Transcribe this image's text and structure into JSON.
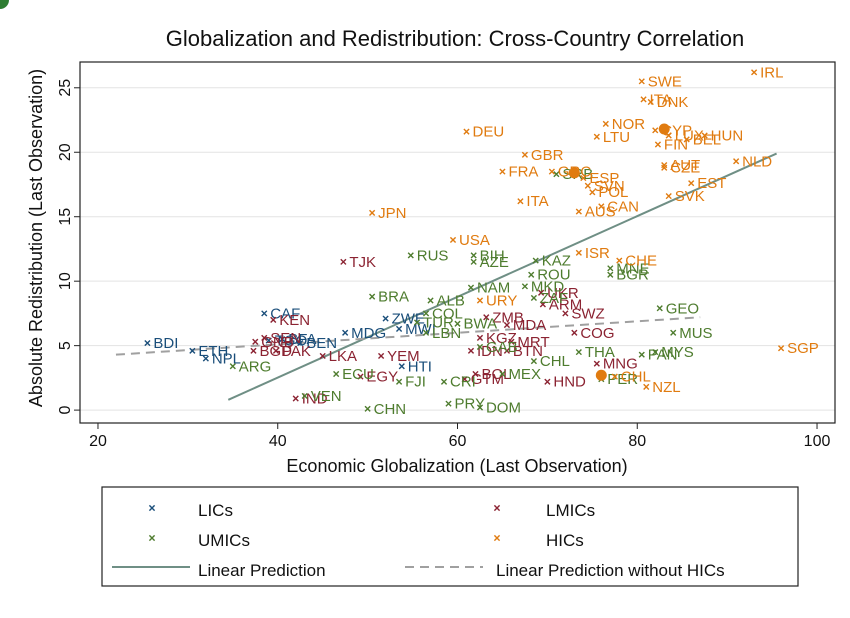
{
  "chart_data": {
    "type": "scatter",
    "title": "Globalization and Redistribution: Cross-Country Correlation",
    "xlabel": "Economic Globalization (Last Observation)",
    "ylabel": "Absolute Redistribution (Last Observation)",
    "xlim": [
      18,
      102
    ],
    "ylim": [
      -1,
      27
    ],
    "xticks": [
      20,
      40,
      60,
      80,
      100
    ],
    "yticks": [
      0,
      5,
      10,
      15,
      20,
      25
    ],
    "grid": true,
    "legend_position": "bottom",
    "colors": {
      "LICs": "#1a4e7a",
      "LMICs": "#8b2332",
      "UMICs": "#4e7c2e",
      "HICs": "#e07b10",
      "fit_all": "#6f8f85",
      "fit_nohic": "#a0a0a0"
    },
    "series": [
      {
        "name": "LICs",
        "marker": "x",
        "points": [
          {
            "label": "BDI",
            "x": 25.5,
            "y": 5.2
          },
          {
            "label": "ETH",
            "x": 30.5,
            "y": 4.6
          },
          {
            "label": "NPL",
            "x": 32.0,
            "y": 4.0
          },
          {
            "label": "CAF",
            "x": 38.5,
            "y": 7.5
          },
          {
            "label": "TGO",
            "x": 39.0,
            "y": 5.4
          },
          {
            "label": "BFA",
            "x": 40.5,
            "y": 5.5
          },
          {
            "label": "BEN",
            "x": 42.5,
            "y": 5.2
          },
          {
            "label": "MDG",
            "x": 47.5,
            "y": 6.0
          },
          {
            "label": "ZWE",
            "x": 52.0,
            "y": 7.1
          },
          {
            "label": "MWI",
            "x": 53.5,
            "y": 6.3
          },
          {
            "label": "HTI",
            "x": 53.8,
            "y": 3.4
          }
        ]
      },
      {
        "name": "LMICs",
        "marker": "x",
        "points": [
          {
            "label": "TJK",
            "x": 47.3,
            "y": 11.5
          },
          {
            "label": "KEN",
            "x": 39.5,
            "y": 7.0
          },
          {
            "label": "SEN",
            "x": 38.5,
            "y": 5.6
          },
          {
            "label": "GNB",
            "x": 37.5,
            "y": 5.3
          },
          {
            "label": "BGD",
            "x": 37.3,
            "y": 4.6
          },
          {
            "label": "PAK",
            "x": 39.8,
            "y": 4.6
          },
          {
            "label": "IND",
            "x": 42.0,
            "y": 0.9
          },
          {
            "label": "LKA",
            "x": 45.0,
            "y": 4.2
          },
          {
            "label": "EGY",
            "x": 49.2,
            "y": 2.6
          },
          {
            "label": "YEM",
            "x": 51.5,
            "y": 4.2
          },
          {
            "label": "KGZ",
            "x": 62.5,
            "y": 5.6
          },
          {
            "label": "ZMB",
            "x": 63.2,
            "y": 7.2
          },
          {
            "label": "MDA",
            "x": 65.5,
            "y": 6.6
          },
          {
            "label": "ARM",
            "x": 69.5,
            "y": 8.2
          },
          {
            "label": "UKR",
            "x": 69.3,
            "y": 9.1
          },
          {
            "label": "SWZ",
            "x": 72.0,
            "y": 7.5
          },
          {
            "label": "MRT",
            "x": 66.0,
            "y": 5.3
          },
          {
            "label": "IDN",
            "x": 61.5,
            "y": 4.6
          },
          {
            "label": "BTN",
            "x": 65.5,
            "y": 4.6
          },
          {
            "label": "COG",
            "x": 73.0,
            "y": 6.0
          },
          {
            "label": "MNG",
            "x": 75.5,
            "y": 3.6
          },
          {
            "label": "HND",
            "x": 70.0,
            "y": 2.2
          },
          {
            "label": "GTM",
            "x": 60.8,
            "y": 2.4
          },
          {
            "label": "BOL",
            "x": 62.0,
            "y": 2.8
          }
        ]
      },
      {
        "name": "UMICs",
        "marker": "x",
        "points": [
          {
            "label": "RUS",
            "x": 54.8,
            "y": 12.0
          },
          {
            "label": "BIH",
            "x": 61.8,
            "y": 12.0
          },
          {
            "label": "AZE",
            "x": 61.8,
            "y": 11.5
          },
          {
            "label": "KAZ",
            "x": 68.7,
            "y": 11.6
          },
          {
            "label": "ROU",
            "x": 68.2,
            "y": 10.5
          },
          {
            "label": "MKD",
            "x": 67.5,
            "y": 9.6
          },
          {
            "label": "ZAF",
            "x": 68.5,
            "y": 8.7
          },
          {
            "label": "NAM",
            "x": 61.5,
            "y": 9.5
          },
          {
            "label": "BRA",
            "x": 50.5,
            "y": 8.8
          },
          {
            "label": "ALB",
            "x": 57.0,
            "y": 8.5
          },
          {
            "label": "COL",
            "x": 56.5,
            "y": 7.5
          },
          {
            "label": "TUR",
            "x": 55.5,
            "y": 6.8
          },
          {
            "label": "LBN",
            "x": 56.5,
            "y": 6.0
          },
          {
            "label": "BWA",
            "x": 60.0,
            "y": 6.7
          },
          {
            "label": "GAB",
            "x": 62.5,
            "y": 4.9
          },
          {
            "label": "ECU",
            "x": 46.5,
            "y": 2.8
          },
          {
            "label": "FJI",
            "x": 53.5,
            "y": 2.2
          },
          {
            "label": "ARG",
            "x": 35.0,
            "y": 3.4
          },
          {
            "label": "VEN",
            "x": 43.0,
            "y": 1.1
          },
          {
            "label": "CHN",
            "x": 50.0,
            "y": 0.1
          },
          {
            "label": "PRY",
            "x": 59.0,
            "y": 0.5
          },
          {
            "label": "DOM",
            "x": 62.5,
            "y": 0.2
          },
          {
            "label": "CRI",
            "x": 58.5,
            "y": 2.2
          },
          {
            "label": "MEX",
            "x": 65.0,
            "y": 2.8
          },
          {
            "label": "CHL",
            "x": 68.5,
            "y": 3.8
          },
          {
            "label": "THA",
            "x": 73.5,
            "y": 4.5
          },
          {
            "label": "PER",
            "x": 76.0,
            "y": 2.4
          },
          {
            "label": "PAN",
            "x": 80.5,
            "y": 4.3
          },
          {
            "label": "MYS",
            "x": 82.0,
            "y": 4.5
          },
          {
            "label": "MUS",
            "x": 84.0,
            "y": 6.0
          },
          {
            "label": "GEO",
            "x": 82.5,
            "y": 7.9
          },
          {
            "label": "MNE",
            "x": 77.0,
            "y": 11.0
          },
          {
            "label": "BGR",
            "x": 77.0,
            "y": 10.5
          },
          {
            "label": "SRB",
            "x": 71.0,
            "y": 18.3
          }
        ]
      },
      {
        "name": "HICs",
        "marker": "x",
        "points": [
          {
            "label": "IRL",
            "x": 93.0,
            "y": 26.2
          },
          {
            "label": "SWE",
            "x": 80.5,
            "y": 25.5
          },
          {
            "label": "ITA",
            "x": 80.7,
            "y": 24.1
          },
          {
            "label": "DNK",
            "x": 81.5,
            "y": 23.9
          },
          {
            "label": "DEU",
            "x": 61.0,
            "y": 21.6
          },
          {
            "label": "NOR",
            "x": 76.5,
            "y": 22.2
          },
          {
            "label": "LTU",
            "x": 75.5,
            "y": 21.2
          },
          {
            "label": "CYP",
            "x": 82.0,
            "y": 21.7
          },
          {
            "label": "LUX",
            "x": 83.5,
            "y": 21.3
          },
          {
            "label": "BEL",
            "x": 85.5,
            "y": 21.0
          },
          {
            "label": "HUN",
            "x": 87.5,
            "y": 21.3
          },
          {
            "label": "FIN",
            "x": 82.3,
            "y": 20.6
          },
          {
            "label": "GBR",
            "x": 67.5,
            "y": 19.8
          },
          {
            "label": "FRA",
            "x": 65.0,
            "y": 18.5
          },
          {
            "label": "GRC",
            "x": 70.5,
            "y": 18.5
          },
          {
            "label": "ESP",
            "x": 74.0,
            "y": 18.0
          },
          {
            "label": "SVN",
            "x": 74.5,
            "y": 17.4
          },
          {
            "label": "POL",
            "x": 75.0,
            "y": 16.9
          },
          {
            "label": "AUT",
            "x": 83.0,
            "y": 19.0
          },
          {
            "label": "CZE",
            "x": 83.0,
            "y": 18.8
          },
          {
            "label": "NLD",
            "x": 91.0,
            "y": 19.3
          },
          {
            "label": "EST",
            "x": 86.0,
            "y": 17.6
          },
          {
            "label": "SVK",
            "x": 83.5,
            "y": 16.6
          },
          {
            "label": "CAN",
            "x": 76.0,
            "y": 15.8
          },
          {
            "label": "AUS",
            "x": 73.5,
            "y": 15.4
          },
          {
            "label": "ITA",
            "x": 67.0,
            "y": 16.2
          },
          {
            "label": "JPN",
            "x": 50.5,
            "y": 15.3
          },
          {
            "label": "USA",
            "x": 59.5,
            "y": 13.2
          },
          {
            "label": "ISR",
            "x": 73.5,
            "y": 12.2
          },
          {
            "label": "CHE",
            "x": 78.0,
            "y": 11.6
          },
          {
            "label": "URY",
            "x": 62.5,
            "y": 8.5
          },
          {
            "label": "CHL",
            "x": 77.5,
            "y": 2.6
          },
          {
            "label": "NZL",
            "x": 81.0,
            "y": 1.8
          },
          {
            "label": "SGP",
            "x": 96.0,
            "y": 4.8
          }
        ]
      }
    ],
    "highlighted_points": [
      {
        "x": 83.0,
        "y": 21.8
      },
      {
        "x": 73.0,
        "y": 18.4
      },
      {
        "x": 76.0,
        "y": 2.7
      }
    ],
    "fits": [
      {
        "name": "Linear Prediction",
        "style": "solid",
        "x": [
          34.5,
          95.5
        ],
        "y": [
          0.8,
          19.9
        ]
      },
      {
        "name": "Linear Prediction without HICs",
        "style": "dashed",
        "x": [
          22.0,
          87.0
        ],
        "y": [
          4.3,
          7.2
        ]
      }
    ],
    "legend": {
      "entries": [
        {
          "label": "LICs",
          "series": "LICs",
          "kind": "marker"
        },
        {
          "label": "LMICs",
          "series": "LMICs",
          "kind": "marker"
        },
        {
          "label": "UMICs",
          "series": "UMICs",
          "kind": "marker"
        },
        {
          "label": "HICs",
          "series": "HICs",
          "kind": "marker"
        },
        {
          "label": "Linear Prediction",
          "series": "fit_all",
          "kind": "solid"
        },
        {
          "label": "Linear Prediction without HICs",
          "series": "fit_nohic",
          "kind": "dashed"
        }
      ]
    }
  }
}
